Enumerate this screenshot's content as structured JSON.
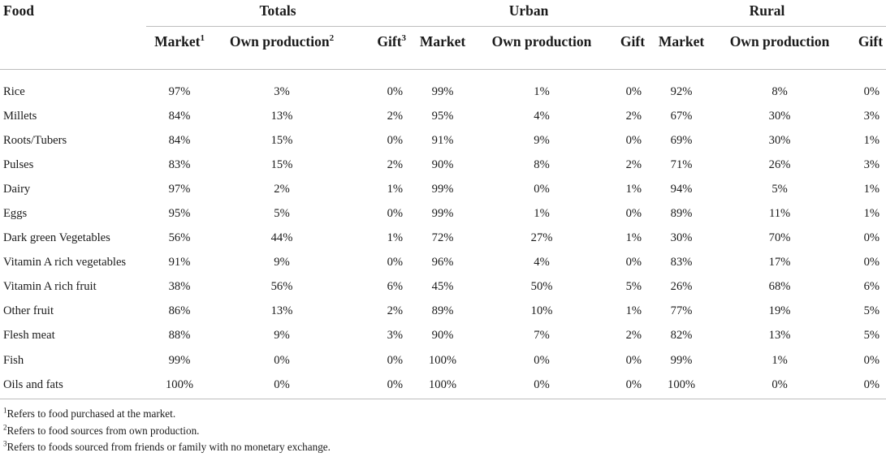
{
  "table": {
    "food_header": "Food",
    "groups": [
      "Totals",
      "Urban",
      "Rural"
    ],
    "subheaders": [
      {
        "label": "Market",
        "sup": "1"
      },
      {
        "label": "Own production",
        "sup": "2"
      },
      {
        "label": "Gift",
        "sup": "3"
      },
      {
        "label": "Market",
        "sup": ""
      },
      {
        "label": "Own production",
        "sup": ""
      },
      {
        "label": "Gift",
        "sup": ""
      },
      {
        "label": "Market",
        "sup": ""
      },
      {
        "label": "Own production",
        "sup": ""
      },
      {
        "label": "Gift",
        "sup": ""
      }
    ],
    "rows": [
      {
        "food": "Rice",
        "values": [
          "97%",
          "3%",
          "0%",
          "99%",
          "1%",
          "0%",
          "92%",
          "8%",
          "0%"
        ]
      },
      {
        "food": "Millets",
        "values": [
          "84%",
          "13%",
          "2%",
          "95%",
          "4%",
          "2%",
          "67%",
          "30%",
          "3%"
        ]
      },
      {
        "food": "Roots/Tubers",
        "values": [
          "84%",
          "15%",
          "0%",
          "91%",
          "9%",
          "0%",
          "69%",
          "30%",
          "1%"
        ]
      },
      {
        "food": "Pulses",
        "values": [
          "83%",
          "15%",
          "2%",
          "90%",
          "8%",
          "2%",
          "71%",
          "26%",
          "3%"
        ]
      },
      {
        "food": "Dairy",
        "values": [
          "97%",
          "2%",
          "1%",
          "99%",
          "0%",
          "1%",
          "94%",
          "5%",
          "1%"
        ]
      },
      {
        "food": "Eggs",
        "values": [
          "95%",
          "5%",
          "0%",
          "99%",
          "1%",
          "0%",
          "89%",
          "11%",
          "1%"
        ]
      },
      {
        "food": "Dark green Vegetables",
        "values": [
          "56%",
          "44%",
          "1%",
          "72%",
          "27%",
          "1%",
          "30%",
          "70%",
          "0%"
        ]
      },
      {
        "food": "Vitamin A rich vegetables",
        "values": [
          "91%",
          "9%",
          "0%",
          "96%",
          "4%",
          "0%",
          "83%",
          "17%",
          "0%"
        ]
      },
      {
        "food": "Vitamin A rich fruit",
        "values": [
          "38%",
          "56%",
          "6%",
          "45%",
          "50%",
          "5%",
          "26%",
          "68%",
          "6%"
        ]
      },
      {
        "food": "Other fruit",
        "values": [
          "86%",
          "13%",
          "2%",
          "89%",
          "10%",
          "1%",
          "77%",
          "19%",
          "5%"
        ]
      },
      {
        "food": "Flesh meat",
        "values": [
          "88%",
          "9%",
          "3%",
          "90%",
          "7%",
          "2%",
          "82%",
          "13%",
          "5%"
        ]
      },
      {
        "food": "Fish",
        "values": [
          "99%",
          "0%",
          "0%",
          "100%",
          "0%",
          "0%",
          "99%",
          "1%",
          "0%"
        ]
      },
      {
        "food": "Oils and fats",
        "values": [
          "100%",
          "0%",
          "0%",
          "100%",
          "0%",
          "0%",
          "100%",
          "0%",
          "0%"
        ]
      }
    ]
  },
  "footnotes": [
    {
      "sup": "1",
      "text": "Refers to food purchased at the market."
    },
    {
      "sup": "2",
      "text": "Refers to food sources from own production."
    },
    {
      "sup": "3",
      "text": "Refers to foods sourced from friends or family with no monetary exchange."
    }
  ]
}
